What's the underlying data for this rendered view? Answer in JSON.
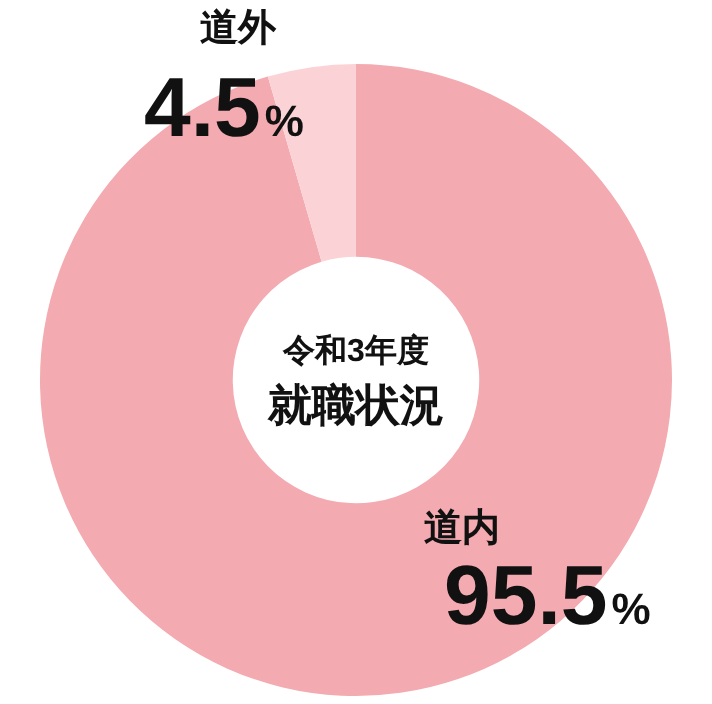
{
  "chart_data": {
    "type": "donut",
    "title": "就職状況",
    "subtitle": "令和3年度",
    "categories": [
      "道内",
      "道外"
    ],
    "values": [
      95.5,
      4.5
    ],
    "colors": [
      "#f3aab0",
      "#fbd3d6"
    ],
    "value_labels": [
      "95.5%",
      "4.5%"
    ],
    "legend": false
  }
}
